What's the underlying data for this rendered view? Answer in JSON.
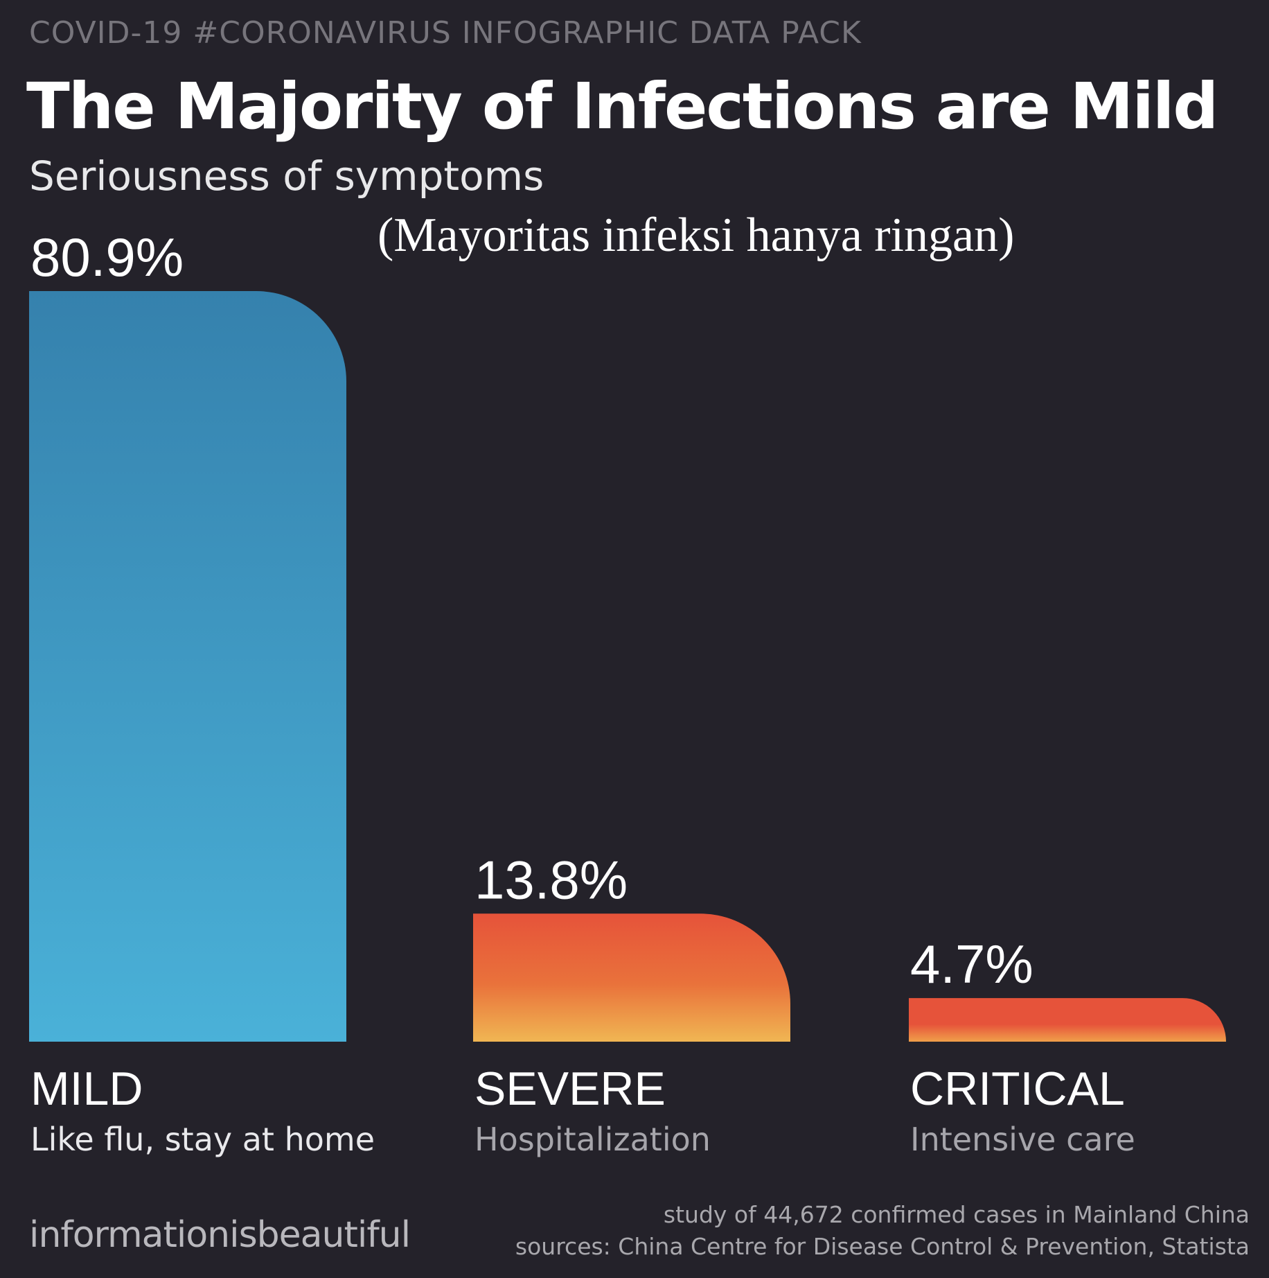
{
  "header": {
    "kicker": "COVID-19 #CORONAVIRUS INFOGRAPHIC DATA PACK",
    "title": "The Majority of Infections are Mild",
    "subtitle": "Seriousness of symptoms",
    "translation": "(Mayoritas infeksi hanya ringan)"
  },
  "chart_data": {
    "type": "bar",
    "title": "The Majority of Infections are Mild",
    "subtitle": "Seriousness of symptoms",
    "categories": [
      "MILD",
      "SEVERE",
      "CRITICAL"
    ],
    "descriptions": [
      "Like flu, stay at home",
      "Hospitalization",
      "Intensive care"
    ],
    "values": [
      80.9,
      13.8,
      4.7
    ],
    "value_labels": [
      "80.9%",
      "13.8%",
      "4.7%"
    ],
    "units": "%",
    "ylim": [
      0,
      80.9
    ],
    "grid": false,
    "colors": {
      "mild_top": "#3581ad",
      "mild_bottom": "#4ab1d8",
      "severe_top": "#e6533a",
      "severe_mid": "#e9723b",
      "severe_bottom": "#f0b653",
      "critical_top": "#e6533a",
      "critical_bottom": "#f0a04a"
    }
  },
  "footer": {
    "brand": "informationisbeautiful",
    "note_line1": "study of 44,672 confirmed cases in Mainland China",
    "note_line2": "sources: China Centre for Disease Control & Prevention, Statista"
  }
}
